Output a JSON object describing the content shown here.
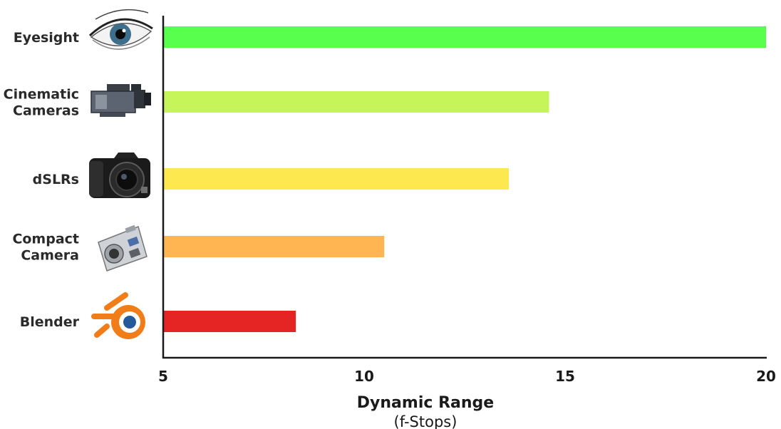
{
  "chart_data": {
    "type": "bar",
    "orientation": "horizontal",
    "categories": [
      "Eyesight",
      "Cinematic Cameras",
      "dSLRs",
      "Compact Camera",
      "Blender"
    ],
    "category_lines": [
      [
        "Eyesight"
      ],
      [
        "Cinematic",
        "Cameras"
      ],
      [
        "dSLRs"
      ],
      [
        "Compact",
        "Camera"
      ],
      [
        "Blender"
      ]
    ],
    "values": [
      20,
      14.6,
      13.6,
      10.5,
      8.3
    ],
    "bar_colors": [
      "#59ff4d",
      "#c6f55a",
      "#fde94f",
      "#ffb652",
      "#e42523"
    ],
    "category_icons": [
      "eye-icon",
      "cinema-camera-icon",
      "dslr-camera-icon",
      "compact-camera-icon",
      "blender-logo-icon"
    ],
    "xlabel": "Dynamic Range",
    "xsublabel": "(f-Stops)",
    "ylabel": "",
    "title": "",
    "xlim": [
      5,
      20
    ],
    "xticks": [
      5,
      10,
      15,
      20
    ],
    "grid": false,
    "legend": "none"
  }
}
